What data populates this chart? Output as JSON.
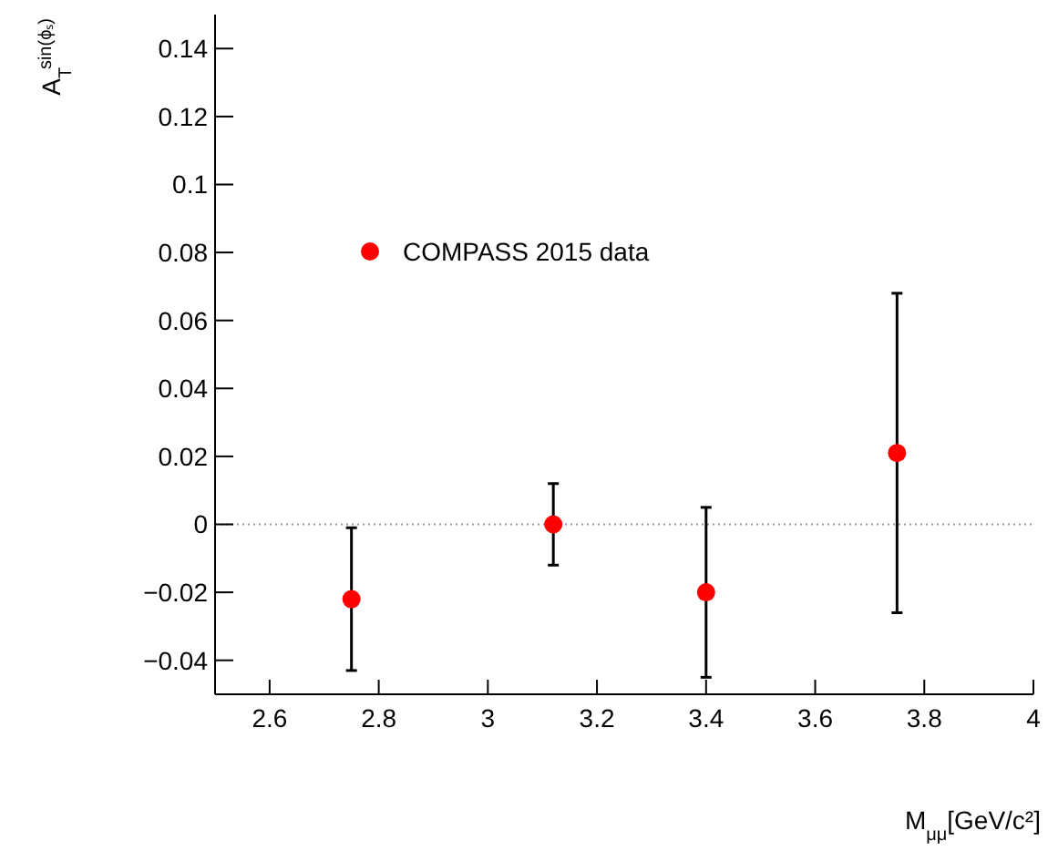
{
  "chart_data": {
    "type": "scatter",
    "xlabel": "M$_{μμ}$[GeV/c²]",
    "ylabel": "A$_{T}$$^{sin(ϕₛ)}$",
    "x": [
      2.75,
      3.12,
      3.4,
      3.75
    ],
    "series": [
      {
        "name": "COMPASS 2015 data",
        "color": "#ff0000",
        "values": [
          -0.022,
          0.0,
          -0.02,
          0.021
        ],
        "errors": [
          0.021,
          0.012,
          0.025,
          0.047
        ]
      }
    ],
    "xlim": [
      2.5,
      4
    ],
    "xticks": [
      2.6,
      2.8,
      3,
      3.2,
      3.4,
      3.6,
      3.8,
      4
    ],
    "ylim": [
      -0.05,
      0.15
    ],
    "yticks": [
      -0.04,
      -0.02,
      0,
      0.02,
      0.04,
      0.06,
      0.08,
      0.1,
      0.12,
      0.14
    ],
    "ref_lines": [
      {
        "axis": "y",
        "value": 0,
        "color": "#999999",
        "line_style": "dotted"
      }
    ],
    "marker": "circle",
    "legend": "top left",
    "grid": false
  }
}
